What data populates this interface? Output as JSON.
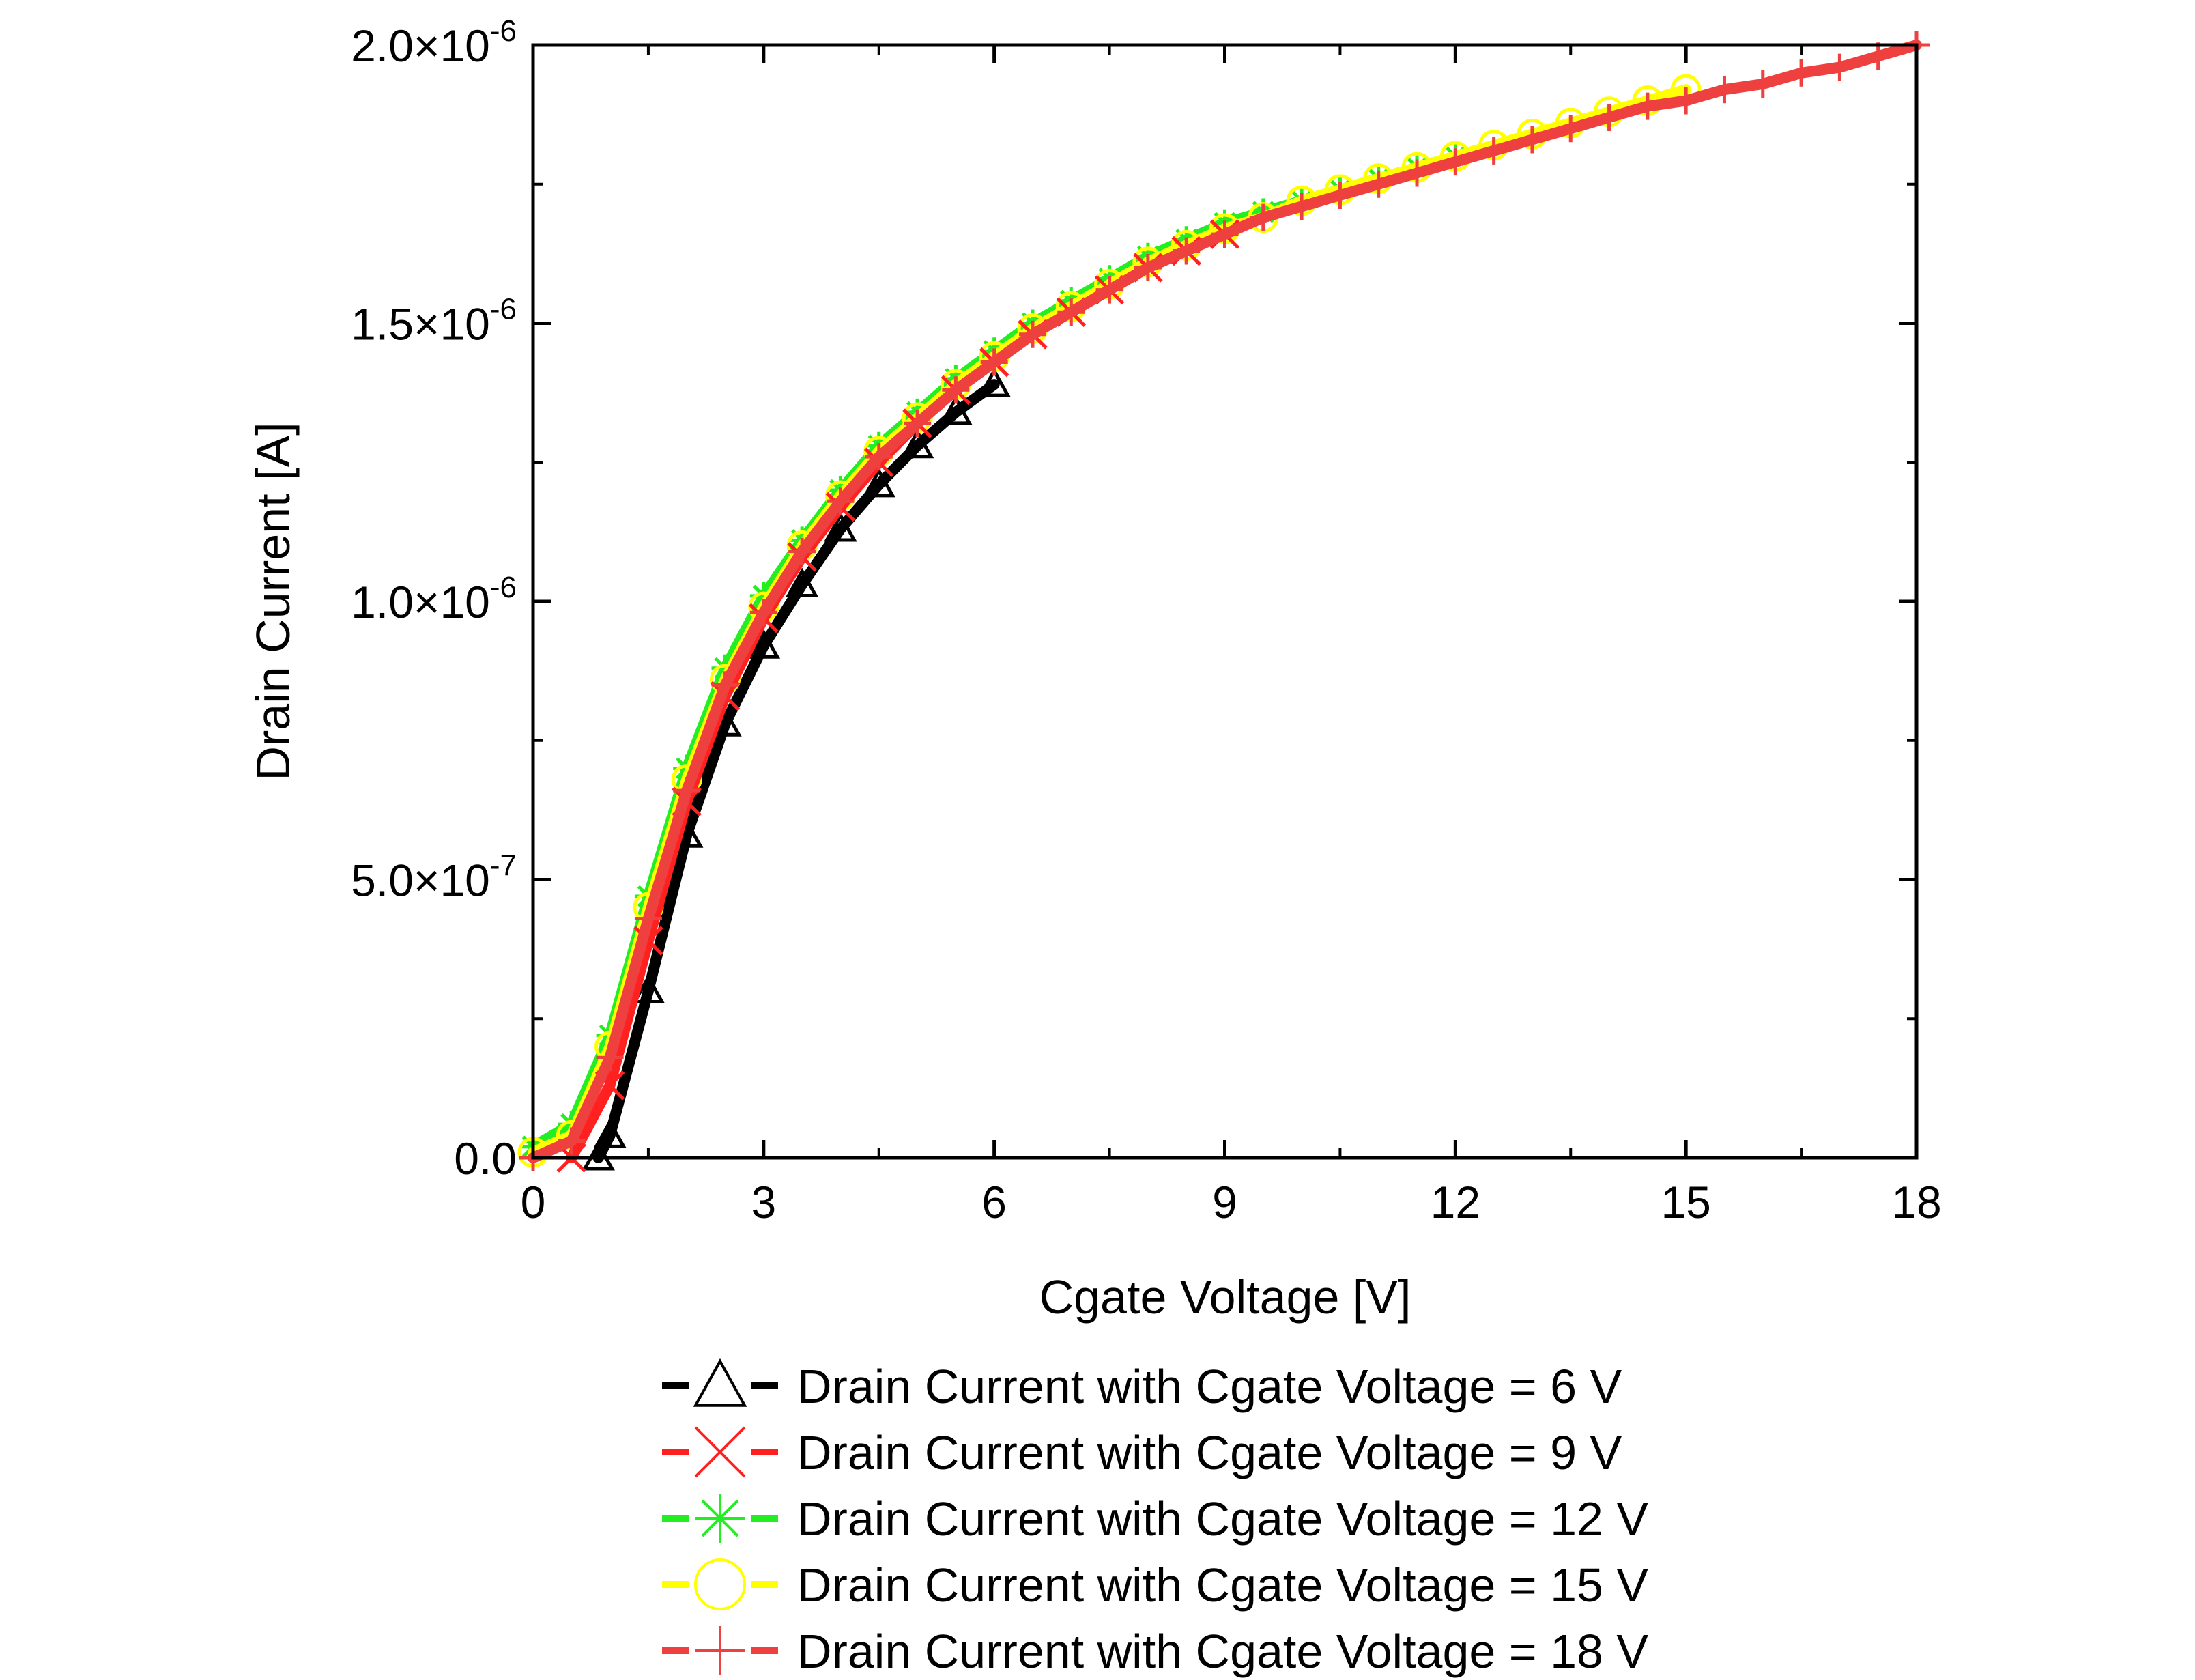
{
  "chart_data": {
    "type": "line",
    "xlabel": "Cgate Voltage [V]",
    "ylabel": "Drain Current [A]",
    "xlim": [
      0,
      18
    ],
    "ylim": [
      0,
      2e-06
    ],
    "x_ticks": [
      0,
      3,
      6,
      9,
      12,
      15,
      18
    ],
    "x_tick_labels": [
      "0",
      "3",
      "6",
      "9",
      "12",
      "15",
      "18"
    ],
    "y_ticks": [
      0,
      5e-07,
      1e-06,
      1.5e-06,
      2e-06
    ],
    "y_tick_labels": [
      {
        "mantissa": "0.0",
        "exponent": ""
      },
      {
        "mantissa": "5.0×10",
        "exponent": "-7"
      },
      {
        "mantissa": "1.0×10",
        "exponent": "-6"
      },
      {
        "mantissa": "1.5×10",
        "exponent": "-6"
      },
      {
        "mantissa": "2.0×10",
        "exponent": "-6"
      }
    ],
    "grid": false,
    "legend_position": "below",
    "series": [
      {
        "name": "Drain Current with Cgate Voltage = 6 V",
        "color": "#000000",
        "marker": "triangle",
        "x": [
          0.85,
          1.0,
          1.5,
          2.0,
          2.5,
          3.0,
          3.5,
          4.0,
          4.5,
          5.0,
          5.5,
          6.0
        ],
        "y": [
          0,
          4e-08,
          3e-07,
          5.8e-07,
          7.8e-07,
          9.2e-07,
          1.03e-06,
          1.13e-06,
          1.21e-06,
          1.28e-06,
          1.34e-06,
          1.39e-06
        ]
      },
      {
        "name": "Drain Current with Cgate Voltage = 9 V",
        "color": "#ff2020",
        "marker": "x",
        "x": [
          0.5,
          1.0,
          1.5,
          2.0,
          2.5,
          3.0,
          3.5,
          4.0,
          4.5,
          5.0,
          5.5,
          6.0,
          6.5,
          7.0,
          7.5,
          8.0,
          8.5,
          9.0
        ],
        "y": [
          0,
          1.3e-07,
          3.9e-07,
          6.4e-07,
          8.3e-07,
          9.7e-07,
          1.08e-06,
          1.17e-06,
          1.25e-06,
          1.32e-06,
          1.38e-06,
          1.43e-06,
          1.48e-06,
          1.52e-06,
          1.56e-06,
          1.6e-06,
          1.63e-06,
          1.66e-06
        ]
      },
      {
        "name": "Drain Current with Cgate Voltage = 12 V",
        "color": "#22ee22",
        "marker": "asterisk",
        "x": [
          0,
          0.5,
          1.0,
          1.5,
          2.0,
          2.5,
          3.0,
          3.5,
          4.0,
          4.5,
          5.0,
          5.5,
          6.0,
          6.5,
          7.0,
          7.5,
          8.0,
          8.5,
          9.0,
          9.5,
          10.0,
          10.5,
          11.0,
          11.5,
          12.0
        ],
        "y": [
          2e-08,
          6e-08,
          2.2e-07,
          4.7e-07,
          7e-07,
          8.8e-07,
          1.01e-06,
          1.11e-06,
          1.2e-06,
          1.28e-06,
          1.34e-06,
          1.4e-06,
          1.45e-06,
          1.5e-06,
          1.54e-06,
          1.58e-06,
          1.62e-06,
          1.65e-06,
          1.68e-06,
          1.7e-06,
          1.72e-06,
          1.74e-06,
          1.76e-06,
          1.78e-06,
          1.8e-06
        ]
      },
      {
        "name": "Drain Current with Cgate Voltage = 15 V",
        "color": "#ffff00",
        "marker": "circle",
        "x": [
          0,
          0.5,
          1.0,
          1.5,
          2.0,
          2.5,
          3.0,
          3.5,
          4.0,
          4.5,
          5.0,
          5.5,
          6.0,
          6.5,
          7.0,
          7.5,
          8.0,
          8.5,
          9.0,
          9.5,
          10.0,
          10.5,
          11.0,
          11.5,
          12.0,
          12.5,
          13.0,
          13.5,
          14.0,
          14.5,
          15.0
        ],
        "y": [
          1e-08,
          4e-08,
          2e-07,
          4.5e-07,
          6.8e-07,
          8.6e-07,
          9.9e-07,
          1.1e-06,
          1.19e-06,
          1.27e-06,
          1.33e-06,
          1.39e-06,
          1.44e-06,
          1.49e-06,
          1.53e-06,
          1.57e-06,
          1.61e-06,
          1.64e-06,
          1.67e-06,
          1.69e-06,
          1.72e-06,
          1.74e-06,
          1.76e-06,
          1.78e-06,
          1.8e-06,
          1.82e-06,
          1.84e-06,
          1.86e-06,
          1.88e-06,
          1.9e-06,
          1.92e-06
        ]
      },
      {
        "name": "Drain Current with Cgate Voltage = 18 V",
        "color": "#ef4040",
        "marker": "plus",
        "x": [
          0,
          0.5,
          1.0,
          1.5,
          2.0,
          2.5,
          3.0,
          3.5,
          4.0,
          4.5,
          5.0,
          5.5,
          6.0,
          6.5,
          7.0,
          7.5,
          8.0,
          8.5,
          9.0,
          9.5,
          10.0,
          10.5,
          11.0,
          11.5,
          12.0,
          12.5,
          13.0,
          13.5,
          14.0,
          14.5,
          15.0,
          15.5,
          16.0,
          16.5,
          17.0,
          17.5,
          18.0
        ],
        "y": [
          0,
          3e-08,
          1.8e-07,
          4.3e-07,
          6.6e-07,
          8.5e-07,
          9.8e-07,
          1.09e-06,
          1.18e-06,
          1.26e-06,
          1.32e-06,
          1.38e-06,
          1.43e-06,
          1.48e-06,
          1.52e-06,
          1.56e-06,
          1.6e-06,
          1.63e-06,
          1.66e-06,
          1.69e-06,
          1.71e-06,
          1.73e-06,
          1.75e-06,
          1.77e-06,
          1.79e-06,
          1.81e-06,
          1.83e-06,
          1.85e-06,
          1.87e-06,
          1.89e-06,
          1.9e-06,
          1.92e-06,
          1.93e-06,
          1.95e-06,
          1.96e-06,
          1.98e-06,
          2e-06
        ]
      }
    ]
  }
}
